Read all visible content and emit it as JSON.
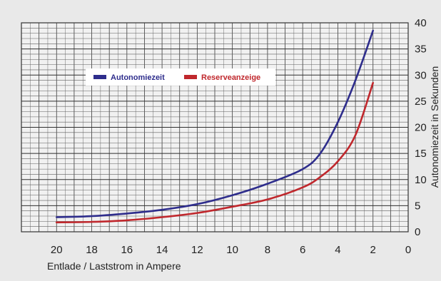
{
  "chart_data": {
    "type": "line",
    "title": "",
    "xlabel": "Entlade / Laststrom in Ampere",
    "ylabel": "Autonomiezeit in Sekunden",
    "xlim": [
      0,
      22
    ],
    "x_reversed": true,
    "ylim": [
      0,
      40
    ],
    "x_ticks": [
      20,
      18,
      16,
      14,
      12,
      10,
      8,
      6,
      4,
      2,
      0
    ],
    "y_ticks": [
      0,
      5,
      10,
      15,
      20,
      25,
      30,
      35,
      40
    ],
    "y_axis_position": "right",
    "grid": true,
    "legend_position": "top-left",
    "series": [
      {
        "name": "Autonomiezeit",
        "color": "#2e2d8c",
        "points": [
          {
            "x": 20,
            "y": 2.8
          },
          {
            "x": 18,
            "y": 3.0
          },
          {
            "x": 16,
            "y": 3.5
          },
          {
            "x": 14,
            "y": 4.2
          },
          {
            "x": 12,
            "y": 5.3
          },
          {
            "x": 10,
            "y": 7.0
          },
          {
            "x": 8,
            "y": 9.2
          },
          {
            "x": 6,
            "y": 12.0
          },
          {
            "x": 5,
            "y": 15.0
          },
          {
            "x": 4,
            "y": 21.0
          },
          {
            "x": 3,
            "y": 29.0
          },
          {
            "x": 2,
            "y": 38.5
          }
        ]
      },
      {
        "name": "Reserveanzeige",
        "color": "#c0282d",
        "points": [
          {
            "x": 20,
            "y": 1.8
          },
          {
            "x": 18,
            "y": 1.9
          },
          {
            "x": 16,
            "y": 2.2
          },
          {
            "x": 14,
            "y": 2.8
          },
          {
            "x": 12,
            "y": 3.6
          },
          {
            "x": 10,
            "y": 4.8
          },
          {
            "x": 8,
            "y": 6.2
          },
          {
            "x": 6,
            "y": 8.5
          },
          {
            "x": 5,
            "y": 10.5
          },
          {
            "x": 4,
            "y": 13.5
          },
          {
            "x": 3,
            "y": 18.5
          },
          {
            "x": 2,
            "y": 28.5
          }
        ]
      }
    ]
  }
}
